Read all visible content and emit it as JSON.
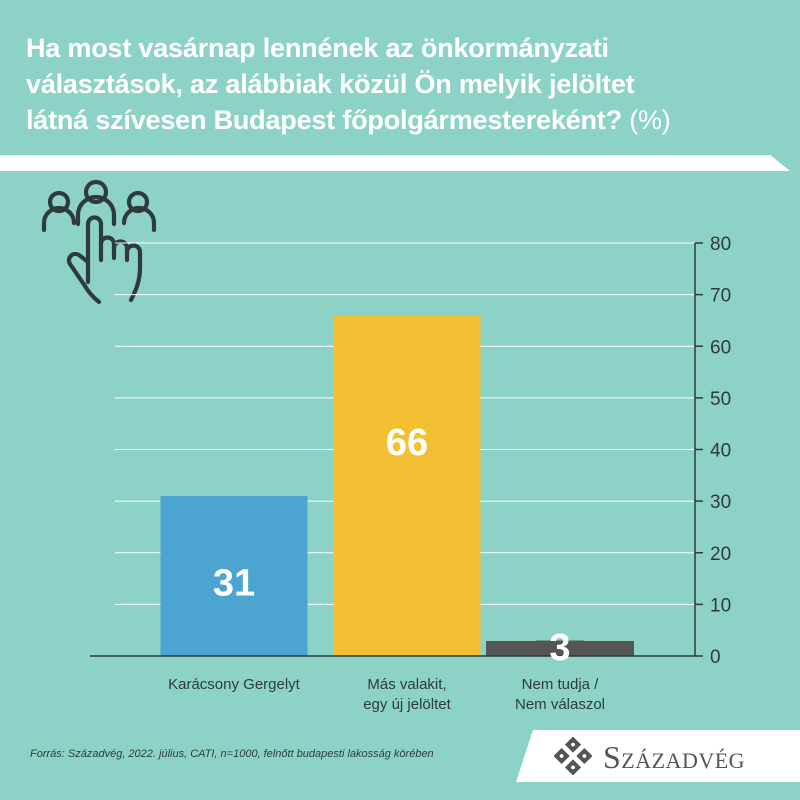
{
  "title": {
    "lines": [
      "Ha most vasárnap lennének az önkormányzati",
      "választások, az alábbiak közül Ön melyik jelöltet",
      "látná szívesen Budapest főpolgármestereként?"
    ],
    "unit": "(%)"
  },
  "icon": "people-hand-pointer-icon",
  "chart_data": {
    "type": "bar",
    "categories": [
      [
        "Karácsony Gergelyt"
      ],
      [
        "Más valakit,",
        "egy új jelöltet"
      ],
      [
        "Nem tudja /",
        "Nem válaszol"
      ]
    ],
    "values": [
      31,
      66,
      3
    ],
    "value_labels": [
      "31",
      "66",
      "3"
    ],
    "colors": [
      "#4ba5d0",
      "#f2c032",
      "#555555"
    ],
    "ylim": [
      0,
      80
    ],
    "yticks": [
      0,
      10,
      20,
      30,
      40,
      50,
      60,
      70,
      80
    ],
    "y_axis_position": "right",
    "grid": true
  },
  "footer": {
    "source": "Forrás: Századvég, 2022. július, CATI, n=1000,  felnőtt budapesti lakosság körében",
    "logo_text": "Századvég"
  },
  "colors": {
    "background": "#8dd2c7",
    "text": "#ffffff",
    "axis": "#2f3b3a",
    "gridline": "#ffffff"
  }
}
